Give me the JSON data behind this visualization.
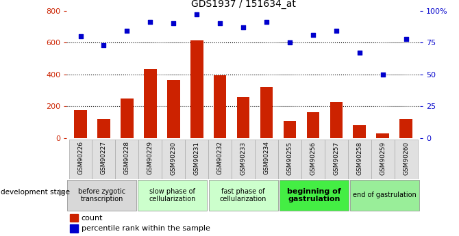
{
  "title": "GDS1937 / 151634_at",
  "samples": [
    "GSM90226",
    "GSM90227",
    "GSM90228",
    "GSM90229",
    "GSM90230",
    "GSM90231",
    "GSM90232",
    "GSM90233",
    "GSM90234",
    "GSM90255",
    "GSM90256",
    "GSM90257",
    "GSM90258",
    "GSM90259",
    "GSM90260"
  ],
  "counts": [
    175,
    120,
    248,
    435,
    365,
    615,
    393,
    258,
    323,
    108,
    163,
    225,
    80,
    28,
    120
  ],
  "percentiles": [
    80,
    73,
    84,
    91,
    90,
    97,
    90,
    87,
    91,
    75,
    81,
    84,
    67,
    50,
    78
  ],
  "bar_color": "#cc2200",
  "dot_color": "#0000cc",
  "ylim_left": [
    0,
    800
  ],
  "ylim_right": [
    0,
    100
  ],
  "yticks_left": [
    0,
    200,
    400,
    600,
    800
  ],
  "yticks_right": [
    0,
    25,
    50,
    75,
    100
  ],
  "ytick_labels_right": [
    "0",
    "25",
    "50",
    "75",
    "100%"
  ],
  "grid_lines": [
    200,
    400,
    600
  ],
  "stages": [
    {
      "label": "before zygotic\ntranscription",
      "start": 0,
      "end": 3,
      "color": "#d8d8d8",
      "fontweight": "normal",
      "fontsize": 7
    },
    {
      "label": "slow phase of\ncellularization",
      "start": 3,
      "end": 6,
      "color": "#ccffcc",
      "fontweight": "normal",
      "fontsize": 7
    },
    {
      "label": "fast phase of\ncellularization",
      "start": 6,
      "end": 9,
      "color": "#ccffcc",
      "fontweight": "normal",
      "fontsize": 7
    },
    {
      "label": "beginning of\ngastrulation",
      "start": 9,
      "end": 12,
      "color": "#44ee44",
      "fontweight": "bold",
      "fontsize": 8
    },
    {
      "label": "end of gastrulation",
      "start": 12,
      "end": 15,
      "color": "#99ee99",
      "fontweight": "normal",
      "fontsize": 7
    }
  ],
  "legend_count_label": "count",
  "legend_pct_label": "percentile rank within the sample",
  "dev_stage_label": "development stage",
  "bar_width": 0.55,
  "tick_color_left": "#cc2200",
  "tick_color_right": "#0000cc",
  "sample_box_color": "#e0e0e0"
}
